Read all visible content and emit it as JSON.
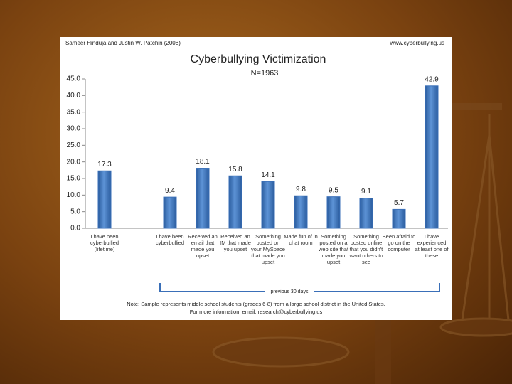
{
  "chart_data": {
    "type": "bar",
    "source": "Sameer Hinduja and Justin W. Patchin (2008)",
    "website": "www.cyberbullying.us",
    "title": "Cyberbullying Victimization",
    "subtitle": "N=1963",
    "categories": [
      "I have been cyberbullied (lifetime)",
      null,
      "I have been cyberbullied",
      "Received an email that made you upset",
      "Received an IM that made you upset",
      "Something posted on your MySpace that made you upset",
      "Made fun of in chat room",
      "Something posted on a web site that made you upset",
      "Something posted online that you didn't want others to see",
      "Been afraid to go on the computer",
      "I have experienced at least one of these"
    ],
    "values": [
      17.3,
      null,
      9.4,
      18.1,
      15.8,
      14.1,
      9.8,
      9.5,
      9.1,
      5.7,
      42.9
    ],
    "color": "#3a6fb8",
    "ylim": [
      0,
      45
    ],
    "yticks": [
      {
        "value": 0,
        "label": "0.0"
      },
      {
        "value": 5,
        "label": "5.0"
      },
      {
        "value": 10,
        "label": "10.0"
      },
      {
        "value": 15,
        "label": "15.0"
      },
      {
        "value": 20,
        "label": "20.0"
      },
      {
        "value": 25,
        "label": "25.0"
      },
      {
        "value": 30,
        "label": "30.0"
      },
      {
        "value": 35,
        "label": "35.0"
      },
      {
        "value": 40,
        "label": "40.0"
      },
      {
        "value": 45,
        "label": "45.0"
      }
    ],
    "bracket_label": "previous 30 days",
    "note": "Note: Sample represents middle school students (grades 6-8) from a large school district in the United States.",
    "more_info": "For more information: email: research@cyberbullying.us"
  }
}
